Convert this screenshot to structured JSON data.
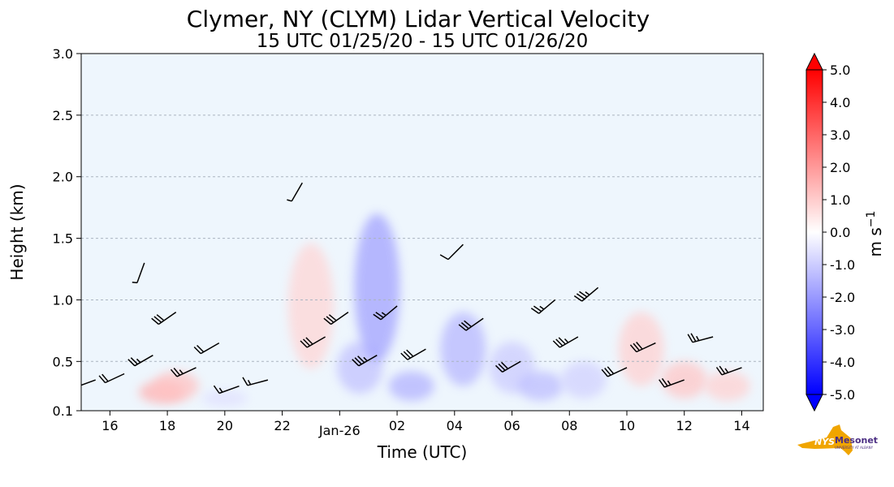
{
  "chart_data": {
    "type": "heatmap",
    "title": "Clymer, NY (CLYM) Lidar Vertical Velocity",
    "subtitle": "15 UTC 01/25/20 - 15 UTC 01/26/20",
    "xlabel": "Time (UTC)",
    "ylabel": "Height (km)",
    "x_ticks": [
      {
        "hour": 16,
        "label": "16"
      },
      {
        "hour": 18,
        "label": "18"
      },
      {
        "hour": 20,
        "label": "20"
      },
      {
        "hour": 22,
        "label": "22"
      },
      {
        "hour": 24,
        "label": "Jan-26"
      },
      {
        "hour": 26,
        "label": "02"
      },
      {
        "hour": 28,
        "label": "04"
      },
      {
        "hour": 30,
        "label": "06"
      },
      {
        "hour": 32,
        "label": "08"
      },
      {
        "hour": 34,
        "label": "10"
      },
      {
        "hour": 36,
        "label": "12"
      },
      {
        "hour": 38,
        "label": "14"
      }
    ],
    "x_range_hours": [
      15,
      38.75
    ],
    "y_ticks": [
      {
        "value": 0.1,
        "label": "0.1"
      },
      {
        "value": 0.5,
        "label": "0.5"
      },
      {
        "value": 1.0,
        "label": "1.0"
      },
      {
        "value": 1.5,
        "label": "1.5"
      },
      {
        "value": 2.0,
        "label": "2.0"
      },
      {
        "value": 2.5,
        "label": "2.5"
      },
      {
        "value": 3.0,
        "label": "3.0"
      }
    ],
    "ylim": [
      0.1,
      3.0
    ],
    "grid": "horizontal dashed",
    "colorbar": {
      "label": "m s",
      "label_exponent": "−1",
      "range": [
        -5,
        5
      ],
      "colormap": "bwr",
      "ticks": [
        {
          "value": 5,
          "label": "5.0"
        },
        {
          "value": 4,
          "label": "4.0"
        },
        {
          "value": 3,
          "label": "3.0"
        },
        {
          "value": 2,
          "label": "2.0"
        },
        {
          "value": 1,
          "label": "1.0"
        },
        {
          "value": 0,
          "label": "0.0"
        },
        {
          "value": -1,
          "label": "-1.0"
        },
        {
          "value": -2,
          "label": "-2.0"
        },
        {
          "value": -3,
          "label": "-3.0"
        },
        {
          "value": -4,
          "label": "-4.0"
        },
        {
          "value": -5,
          "label": "-5.0"
        }
      ]
    },
    "colors": {
      "background_field": "#eef6fd",
      "grid": "#aab4c0",
      "positive": "#ff0000",
      "negative": "#0000ff"
    },
    "velocity_features": [
      {
        "hour": 17.8,
        "height": 0.25,
        "value": 1.5
      },
      {
        "hour": 18.3,
        "height": 0.3,
        "value": 1.2
      },
      {
        "hour": 20.0,
        "height": 0.2,
        "value": -0.6
      },
      {
        "hour": 23.0,
        "height": 0.95,
        "value": 0.8
      },
      {
        "hour": 24.7,
        "height": 0.45,
        "value": -1.2
      },
      {
        "hour": 25.3,
        "height": 1.1,
        "value": -1.8
      },
      {
        "hour": 26.5,
        "height": 0.3,
        "value": -1.5
      },
      {
        "hour": 28.3,
        "height": 0.6,
        "value": -1.4
      },
      {
        "hour": 30.0,
        "height": 0.45,
        "value": -1.0
      },
      {
        "hour": 31.0,
        "height": 0.3,
        "value": -1.3
      },
      {
        "hour": 32.5,
        "height": 0.35,
        "value": -0.9
      },
      {
        "hour": 34.5,
        "height": 0.6,
        "value": 0.9
      },
      {
        "hour": 36.0,
        "height": 0.35,
        "value": 1.1
      },
      {
        "hour": 37.5,
        "height": 0.3,
        "value": 0.9
      }
    ],
    "wind_barbs": [
      {
        "hour": 15.5,
        "height": 0.35,
        "dir": 250,
        "speed": 15
      },
      {
        "hour": 16.5,
        "height": 0.4,
        "dir": 245,
        "speed": 20
      },
      {
        "hour": 17.2,
        "height": 1.3,
        "dir": 200,
        "speed": 5
      },
      {
        "hour": 17.5,
        "height": 0.55,
        "dir": 240,
        "speed": 25
      },
      {
        "hour": 18.3,
        "height": 0.9,
        "dir": 235,
        "speed": 30
      },
      {
        "hour": 19.0,
        "height": 0.45,
        "dir": 245,
        "speed": 25
      },
      {
        "hour": 19.8,
        "height": 0.65,
        "dir": 240,
        "speed": 20
      },
      {
        "hour": 20.5,
        "height": 0.3,
        "dir": 250,
        "speed": 15
      },
      {
        "hour": 21.5,
        "height": 0.35,
        "dir": 255,
        "speed": 15
      },
      {
        "hour": 22.7,
        "height": 1.95,
        "dir": 210,
        "speed": 5
      },
      {
        "hour": 23.5,
        "height": 0.7,
        "dir": 240,
        "speed": 30
      },
      {
        "hour": 24.3,
        "height": 0.9,
        "dir": 235,
        "speed": 30
      },
      {
        "hour": 25.3,
        "height": 0.55,
        "dir": 240,
        "speed": 35
      },
      {
        "hour": 26.0,
        "height": 0.95,
        "dir": 230,
        "speed": 25
      },
      {
        "hour": 27.0,
        "height": 0.6,
        "dir": 240,
        "speed": 30
      },
      {
        "hour": 28.3,
        "height": 1.45,
        "dir": 225,
        "speed": 10
      },
      {
        "hour": 29.0,
        "height": 0.85,
        "dir": 235,
        "speed": 30
      },
      {
        "hour": 30.3,
        "height": 0.5,
        "dir": 240,
        "speed": 30
      },
      {
        "hour": 31.5,
        "height": 1.0,
        "dir": 230,
        "speed": 25
      },
      {
        "hour": 32.3,
        "height": 0.7,
        "dir": 240,
        "speed": 35
      },
      {
        "hour": 33.0,
        "height": 1.1,
        "dir": 230,
        "speed": 35
      },
      {
        "hour": 34.0,
        "height": 0.45,
        "dir": 245,
        "speed": 30
      },
      {
        "hour": 35.0,
        "height": 0.65,
        "dir": 245,
        "speed": 30
      },
      {
        "hour": 36.0,
        "height": 0.35,
        "dir": 250,
        "speed": 25
      },
      {
        "hour": 37.0,
        "height": 0.7,
        "dir": 255,
        "speed": 25
      },
      {
        "hour": 38.0,
        "height": 0.45,
        "dir": 250,
        "speed": 25
      }
    ]
  },
  "logo": {
    "primary": "NYS",
    "secondary": "Mesonet",
    "tagline": "UNIVERSITY AT ALBANY",
    "state_color": "#f0a500",
    "text_color": "#4b2e83"
  }
}
